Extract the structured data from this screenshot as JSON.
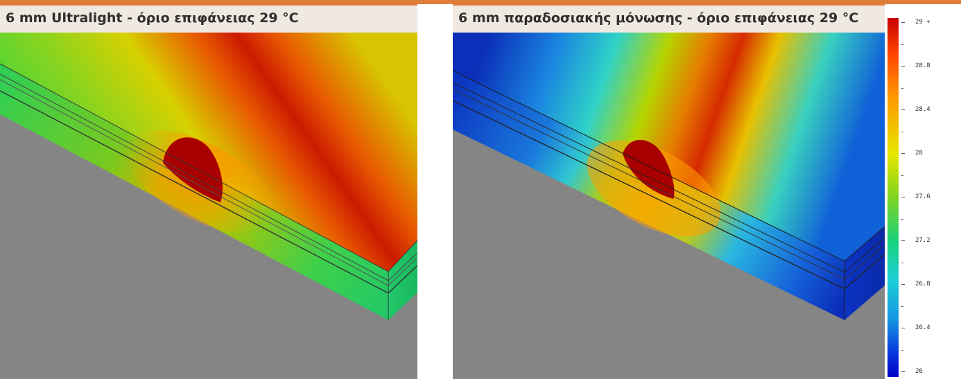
{
  "panels": {
    "left": {
      "title": "6 mm Ultralight - όριο επιφάνειας 29 °C"
    },
    "right": {
      "title": "6 mm παραδοσιακής μόνωσης - όριο επιφάνειας 29 °C"
    }
  },
  "legend": {
    "ticks": [
      "29 +",
      "28.8",
      "28.4",
      "28",
      "27.6",
      "27.2",
      "26.8",
      "26.4",
      "26"
    ],
    "colors": [
      "#c80000",
      "#ff9900",
      "#e6e600",
      "#7ed421",
      "#18d27a",
      "#1ccfd7",
      "#1694e0",
      "#0000c8"
    ]
  }
}
